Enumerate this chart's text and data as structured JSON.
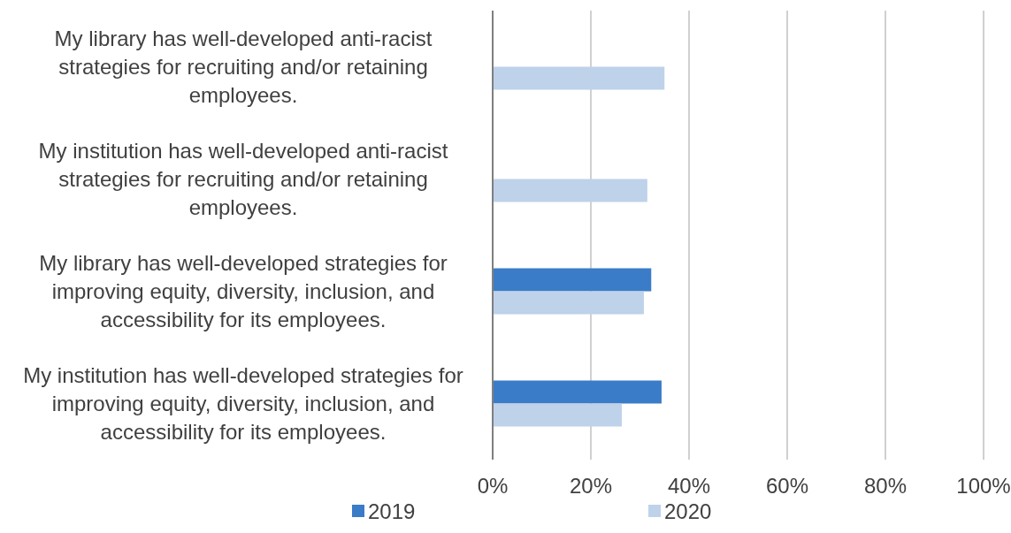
{
  "chart_data": {
    "type": "bar",
    "orientation": "horizontal",
    "categories": [
      "My library has well-developed anti-racist strategies for recruiting and/or retaining employees.",
      "My institution has well-developed anti-racist strategies for recruiting and/or retaining employees.",
      "My library has well-developed strategies for improving equity, diversity, inclusion, and accessibility for its employees.",
      "My institution has well-developed strategies for improving equity, diversity, inclusion, and accessibility for its employees."
    ],
    "series": [
      {
        "name": "2019",
        "color": "#3a7cc7",
        "values": [
          null,
          null,
          32.3,
          34.4
        ]
      },
      {
        "name": "2020",
        "color": "#bed2ea",
        "values": [
          35,
          31.5,
          30.8,
          26.3
        ]
      }
    ],
    "xlim": [
      0,
      100
    ],
    "xticks": [
      {
        "value": 0,
        "label": "0%"
      },
      {
        "value": 20,
        "label": "20%"
      },
      {
        "value": 40,
        "label": "40%"
      },
      {
        "value": 60,
        "label": "60%"
      },
      {
        "value": 80,
        "label": "80%"
      },
      {
        "value": 100,
        "label": "100%"
      }
    ],
    "grid": "x",
    "legend": "bottom"
  }
}
